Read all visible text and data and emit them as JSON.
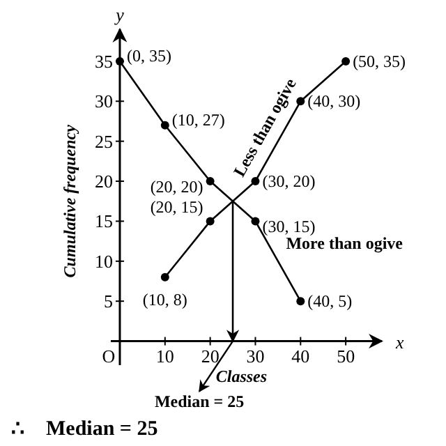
{
  "chart_data": {
    "type": "line",
    "xlabel": "Classes",
    "ylabel": "Cumulative frequency",
    "xlim": [
      -2,
      58
    ],
    "ylim": [
      -3,
      39
    ],
    "xticks": [
      {
        "value": 0,
        "label": "O"
      },
      10,
      20,
      30,
      40,
      50
    ],
    "yticks": [
      5,
      10,
      15,
      20,
      25,
      30,
      35
    ],
    "marker": "circle",
    "line_style": "solid",
    "grid": false,
    "series": [
      {
        "name": "Less than ogive",
        "color": "#000000",
        "x": [
          10,
          20,
          30,
          40,
          50
        ],
        "values": [
          8,
          15,
          20,
          30,
          35
        ],
        "value_labels": [
          "(10, 8)",
          "(20, 15)",
          "(30, 20)",
          "(40, 30)",
          "(50, 35)"
        ]
      },
      {
        "name": "More than ogive",
        "color": "#000000",
        "x": [
          0,
          10,
          20,
          30,
          40
        ],
        "values": [
          35,
          27,
          20,
          15,
          5
        ],
        "value_labels": [
          "(0, 35)",
          "(10, 27)",
          "(20, 20)",
          "(30, 15)",
          "(40, 5)"
        ]
      }
    ],
    "ref_lines": [
      {
        "axis": "x",
        "value": 25,
        "label": "Median = 25"
      }
    ],
    "annotations": [
      "x",
      "y",
      "∴    Median = 25"
    ]
  }
}
